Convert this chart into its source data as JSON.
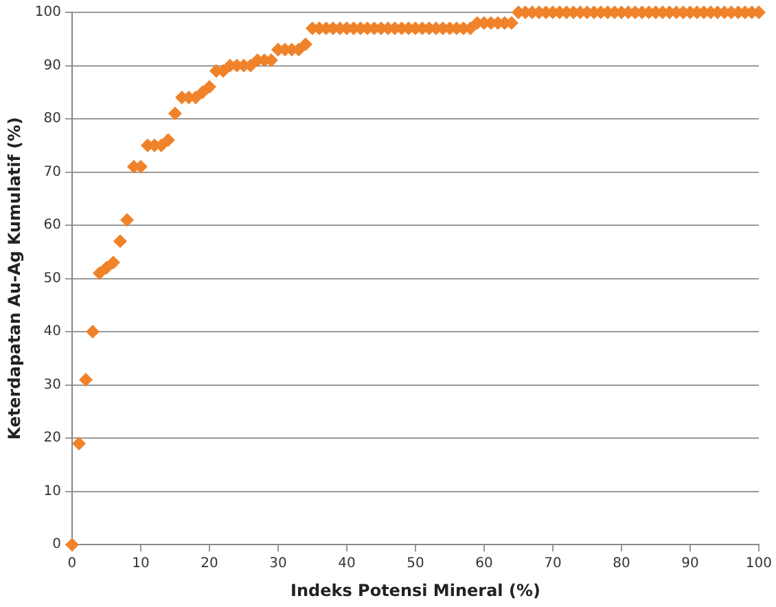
{
  "chart_data": {
    "type": "scatter",
    "xlabel": "Indeks Potensi Mineral (%)",
    "ylabel": "Keterdapatan Au-Ag Kumulatif (%)",
    "x": [
      0,
      1,
      2,
      3,
      4,
      5,
      6,
      7,
      8,
      9,
      10,
      11,
      12,
      13,
      14,
      15,
      16,
      17,
      18,
      19,
      20,
      21,
      22,
      23,
      24,
      25,
      26,
      27,
      28,
      29,
      30,
      31,
      32,
      33,
      34,
      35,
      36,
      37,
      38,
      39,
      40,
      41,
      42,
      43,
      44,
      45,
      46,
      47,
      48,
      49,
      50,
      51,
      52,
      53,
      54,
      55,
      56,
      57,
      58,
      59,
      60,
      61,
      62,
      63,
      64,
      65,
      66,
      67,
      68,
      69,
      70,
      71,
      72,
      73,
      74,
      75,
      76,
      77,
      78,
      79,
      80,
      81,
      82,
      83,
      84,
      85,
      86,
      87,
      88,
      89,
      90,
      91,
      92,
      93,
      94,
      95,
      96,
      97,
      98,
      99,
      100
    ],
    "series": [
      {
        "color": "#f0822a",
        "values": [
          0,
          19,
          31,
          40,
          51,
          52,
          53,
          57,
          61,
          71,
          71,
          75,
          75,
          75,
          76,
          81,
          84,
          84,
          84,
          85,
          86,
          89,
          89,
          90,
          90,
          90,
          90,
          91,
          91,
          91,
          93,
          93,
          93,
          93,
          94,
          97,
          97,
          97,
          97,
          97,
          97,
          97,
          97,
          97,
          97,
          97,
          97,
          97,
          97,
          97,
          97,
          97,
          97,
          97,
          97,
          97,
          97,
          97,
          97,
          98,
          98,
          98,
          98,
          98,
          98,
          100,
          100,
          100,
          100,
          100,
          100,
          100,
          100,
          100,
          100,
          100,
          100,
          100,
          100,
          100,
          100,
          100,
          100,
          100,
          100,
          100,
          100,
          100,
          100,
          100,
          100,
          100,
          100,
          100,
          100,
          100,
          100,
          100,
          100,
          100,
          100
        ]
      }
    ],
    "xlim": [
      0,
      100
    ],
    "xticks": [
      0,
      10,
      20,
      30,
      40,
      50,
      60,
      70,
      80,
      90,
      100
    ],
    "ylim": [
      0,
      100
    ],
    "yticks": [
      0,
      10,
      20,
      30,
      40,
      50,
      60,
      70,
      80,
      90,
      100
    ],
    "grid": "y",
    "legend": false,
    "marker": "diamond"
  }
}
